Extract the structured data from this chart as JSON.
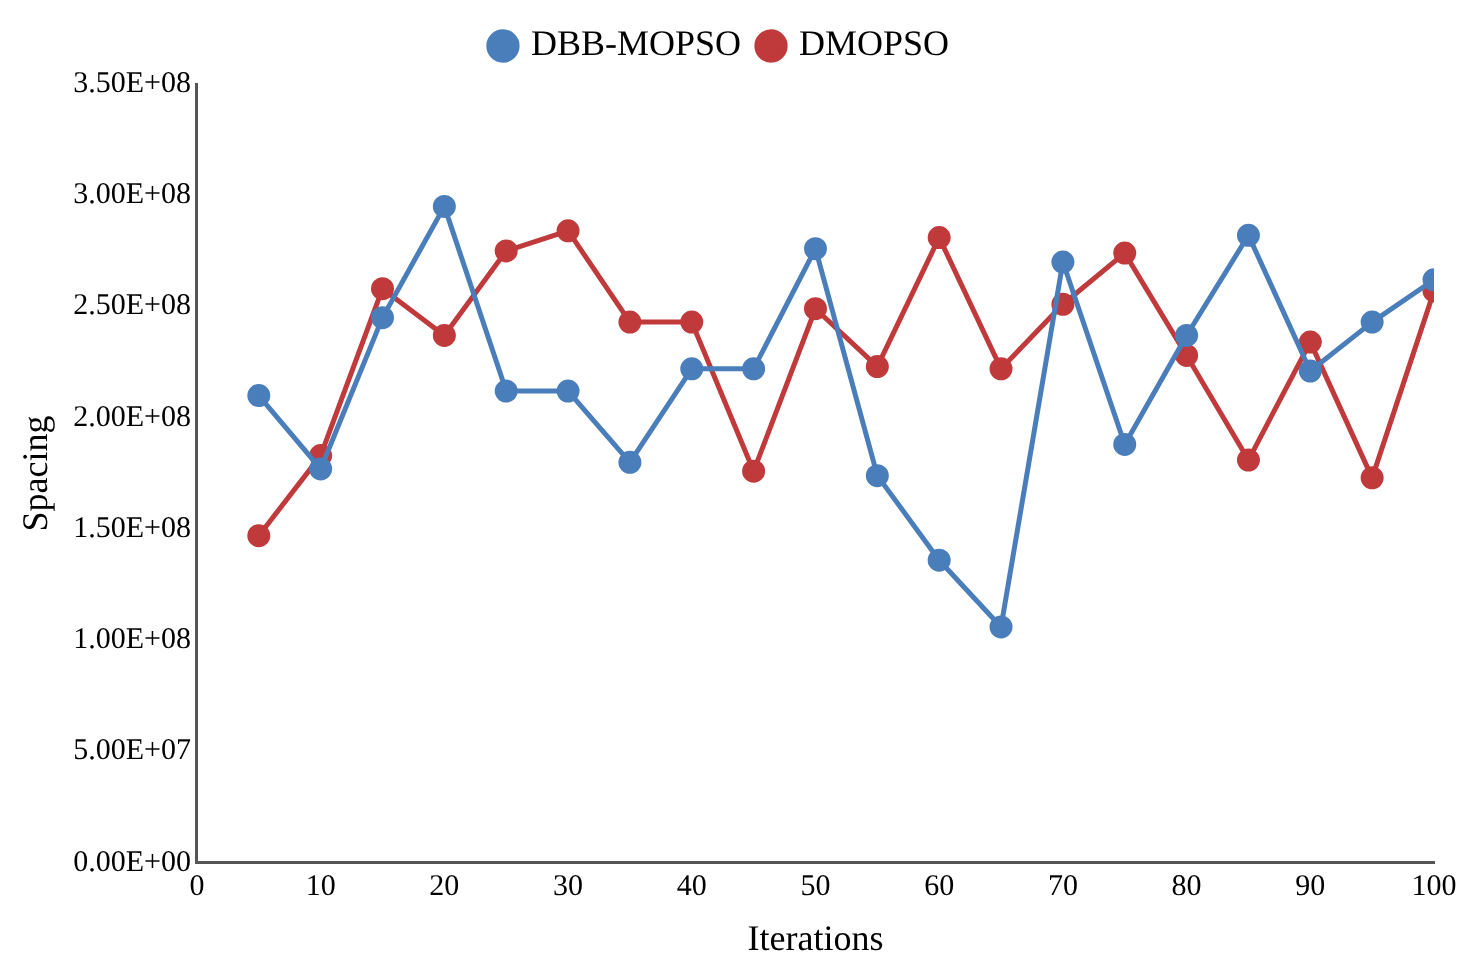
{
  "chart_data": {
    "type": "line",
    "xlabel": "Iterations",
    "ylabel": "Spacing",
    "x": [
      5,
      10,
      15,
      20,
      25,
      30,
      35,
      40,
      45,
      50,
      55,
      60,
      65,
      70,
      75,
      80,
      85,
      90,
      95,
      100
    ],
    "series": [
      {
        "name": "DBB-MOPSO",
        "color": "#4a7ebb",
        "values": [
          210000000,
          177000000,
          245000000,
          295000000,
          212000000,
          212000000,
          180000000,
          222000000,
          222000000,
          276000000,
          174000000,
          136000000,
          106000000,
          270000000,
          188000000,
          237000000,
          282000000,
          221000000,
          243000000,
          262000000
        ]
      },
      {
        "name": "DMOPSO",
        "color": "#c0393b",
        "values": [
          147000000,
          183000000,
          258000000,
          237000000,
          275000000,
          284000000,
          243000000,
          243000000,
          176000000,
          249000000,
          223000000,
          281000000,
          222000000,
          251000000,
          274000000,
          228000000,
          181000000,
          234000000,
          173000000,
          257000000
        ]
      }
    ],
    "xlim": [
      0,
      100
    ],
    "xticks": [
      0,
      10,
      20,
      30,
      40,
      50,
      60,
      70,
      80,
      90,
      100
    ],
    "ylim": [
      0,
      350000000
    ],
    "yticks": [
      {
        "value": 0,
        "label": "0.00E+00"
      },
      {
        "value": 50000000,
        "label": "5.00E+07"
      },
      {
        "value": 100000000,
        "label": "1.00E+08"
      },
      {
        "value": 150000000,
        "label": "1.50E+08"
      },
      {
        "value": 200000000,
        "label": "2.00E+08"
      },
      {
        "value": 250000000,
        "label": "2.50E+08"
      },
      {
        "value": 300000000,
        "label": "3.00E+08"
      },
      {
        "value": 350000000,
        "label": "3.50E+08"
      }
    ],
    "grid": false,
    "legend": "top",
    "marker": "circle",
    "line_style": "solid"
  }
}
